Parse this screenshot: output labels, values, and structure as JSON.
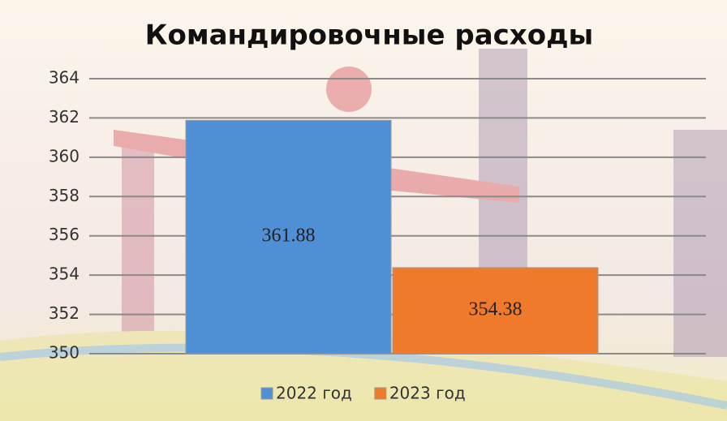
{
  "chart_data": {
    "type": "bar",
    "title": "Командировочные расходы",
    "categories": [
      null
    ],
    "series": [
      {
        "name": "2022 год",
        "color": "#4f8fd6",
        "values": [
          361.88
        ]
      },
      {
        "name": "2023 год",
        "color": "#ef7a2c",
        "values": [
          354.38
        ]
      }
    ],
    "ylim": [
      350,
      364
    ],
    "yticks": [
      350,
      352,
      354,
      356,
      358,
      360,
      362,
      364
    ],
    "grid": true,
    "legend": "bottom"
  }
}
